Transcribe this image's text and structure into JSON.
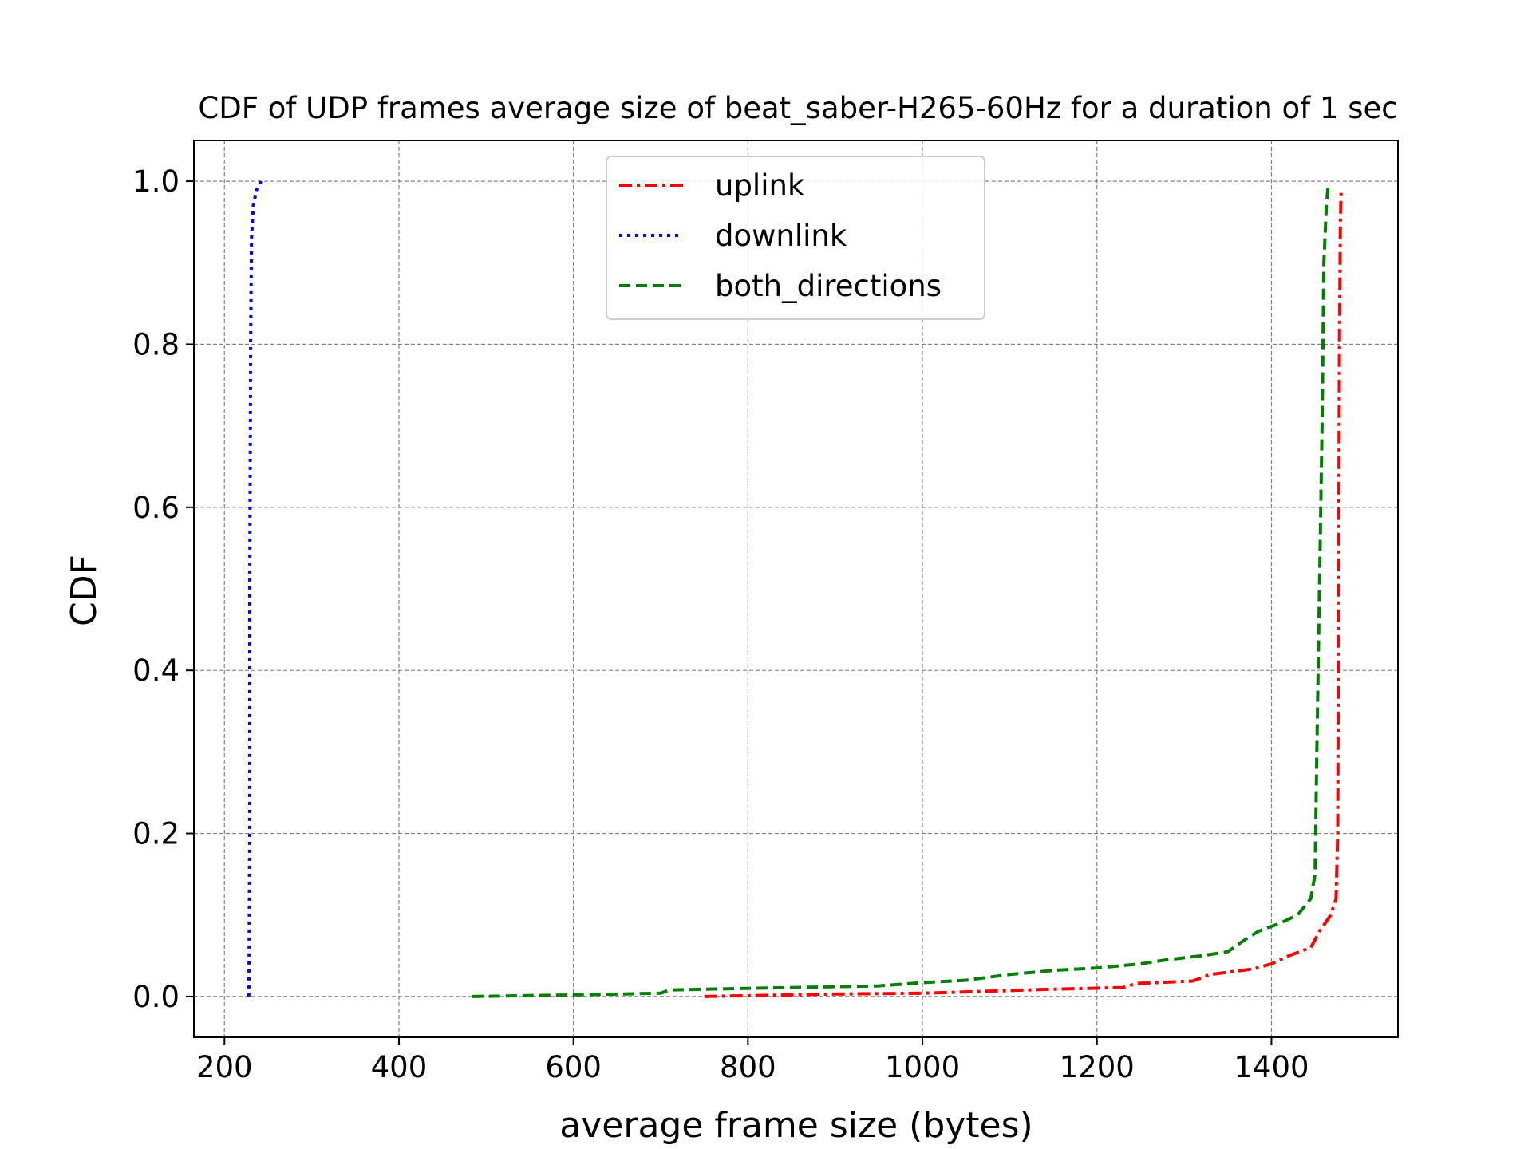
{
  "chart_data": {
    "type": "line",
    "title": "CDF of UDP frames average size of beat_saber-H265-60Hz for a duration of 1 sec",
    "xlabel": "average frame size (bytes)",
    "ylabel": "CDF",
    "xlim": [
      165,
      1545
    ],
    "ylim": [
      -0.05,
      1.05
    ],
    "xticks": [
      200,
      400,
      600,
      800,
      1000,
      1200,
      1400
    ],
    "yticks": [
      0.0,
      0.2,
      0.4,
      0.6,
      0.8,
      1.0
    ],
    "xtick_labels": [
      "200",
      "400",
      "600",
      "800",
      "1000",
      "1200",
      "1400"
    ],
    "ytick_labels": [
      "0.0",
      "0.2",
      "0.4",
      "0.6",
      "0.8",
      "1.0"
    ],
    "grid": true,
    "legend_position": "top-center",
    "series": [
      {
        "name": "uplink",
        "color": "#ff0000",
        "style": "dashdot",
        "points": [
          [
            750,
            0.0
          ],
          [
            900,
            0.003
          ],
          [
            1000,
            0.004
          ],
          [
            1060,
            0.006
          ],
          [
            1150,
            0.009
          ],
          [
            1230,
            0.011
          ],
          [
            1245,
            0.016
          ],
          [
            1310,
            0.019
          ],
          [
            1330,
            0.027
          ],
          [
            1380,
            0.034
          ],
          [
            1400,
            0.04
          ],
          [
            1420,
            0.05
          ],
          [
            1445,
            0.06
          ],
          [
            1455,
            0.08
          ],
          [
            1468,
            0.1
          ],
          [
            1474,
            0.12
          ],
          [
            1476,
            0.2
          ],
          [
            1477,
            0.5
          ],
          [
            1478,
            0.8
          ],
          [
            1479,
            0.95
          ],
          [
            1480,
            0.99
          ]
        ]
      },
      {
        "name": "downlink",
        "color": "#0000ff",
        "style": "dotted",
        "points": [
          [
            228,
            0.0
          ],
          [
            229,
            0.2
          ],
          [
            229,
            0.5
          ],
          [
            230,
            0.8
          ],
          [
            231,
            0.93
          ],
          [
            233,
            0.97
          ],
          [
            237,
            0.99
          ],
          [
            242,
            1.0
          ]
        ]
      },
      {
        "name": "both_directions",
        "color": "#008000",
        "style": "dashed",
        "points": [
          [
            484,
            0.0
          ],
          [
            600,
            0.002
          ],
          [
            700,
            0.004
          ],
          [
            710,
            0.008
          ],
          [
            800,
            0.01
          ],
          [
            950,
            0.013
          ],
          [
            1000,
            0.017
          ],
          [
            1050,
            0.02
          ],
          [
            1100,
            0.027
          ],
          [
            1150,
            0.032
          ],
          [
            1200,
            0.035
          ],
          [
            1250,
            0.04
          ],
          [
            1280,
            0.045
          ],
          [
            1320,
            0.05
          ],
          [
            1350,
            0.055
          ],
          [
            1370,
            0.07
          ],
          [
            1385,
            0.08
          ],
          [
            1410,
            0.09
          ],
          [
            1430,
            0.1
          ],
          [
            1445,
            0.12
          ],
          [
            1450,
            0.15
          ],
          [
            1452,
            0.3
          ],
          [
            1455,
            0.5
          ],
          [
            1458,
            0.7
          ],
          [
            1460,
            0.9
          ],
          [
            1463,
            0.97
          ],
          [
            1465,
            0.995
          ]
        ]
      }
    ]
  }
}
